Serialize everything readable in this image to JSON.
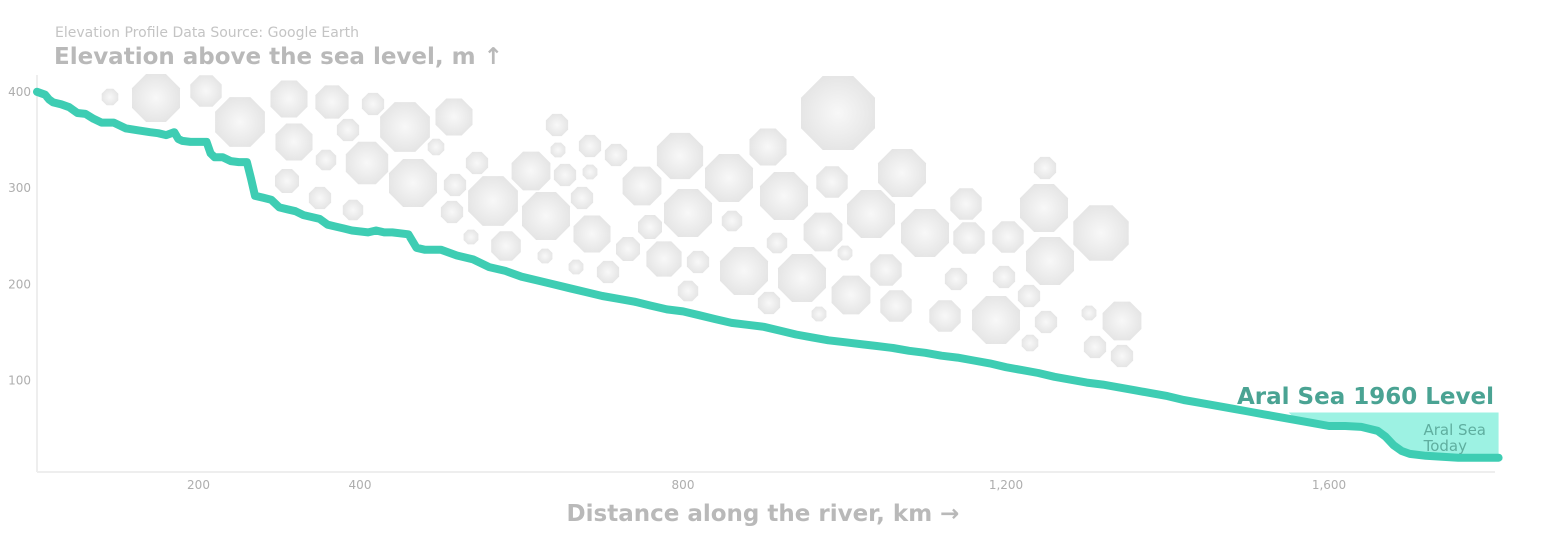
{
  "chart_data": {
    "type": "line",
    "source": "Elevation Profile Data Source: Google Earth",
    "ylabel": "Elevation above the sea level, m ↑",
    "xlabel": "Distance along the river, km →",
    "xlim": [
      0,
      1810
    ],
    "ylim": [
      0,
      420
    ],
    "x_ticks": [
      {
        "value": 200,
        "label": "200"
      },
      {
        "value": 400,
        "label": "400"
      },
      {
        "value": 800,
        "label": "800"
      },
      {
        "value": 1200,
        "label": "1,200"
      },
      {
        "value": 1600,
        "label": "1,600"
      }
    ],
    "y_ticks": [
      {
        "value": 100,
        "label": "100"
      },
      {
        "value": 200,
        "label": "200"
      },
      {
        "value": 300,
        "label": "300"
      },
      {
        "value": 400,
        "label": "400"
      }
    ],
    "grid": false,
    "line_color": "#3ecdb3",
    "series": [
      {
        "x": [
          0,
          10,
          15,
          20,
          30,
          40,
          50,
          60,
          70,
          80,
          95,
          110,
          125,
          140,
          150,
          160,
          170,
          175,
          180,
          190,
          200,
          210,
          215,
          220,
          230,
          240,
          250,
          260,
          265,
          270,
          280,
          290,
          300,
          310,
          320,
          330,
          340,
          350,
          360,
          370,
          380,
          390,
          410,
          420,
          430,
          440,
          460,
          470,
          480,
          500,
          520,
          540,
          560,
          580,
          600,
          620,
          640,
          660,
          680,
          700,
          720,
          740,
          760,
          780,
          800,
          820,
          840,
          860,
          880,
          900,
          920,
          940,
          960,
          980,
          1000,
          1020,
          1040,
          1060,
          1080,
          1100,
          1120,
          1140,
          1160,
          1180,
          1200,
          1220,
          1240,
          1260,
          1280,
          1300,
          1320,
          1340,
          1360,
          1380,
          1400,
          1420,
          1440,
          1460,
          1480,
          1500,
          1520,
          1540,
          1560,
          1580,
          1600,
          1620,
          1640,
          1660,
          1670,
          1680,
          1690,
          1700,
          1720,
          1740,
          1760,
          1780,
          1810
        ],
        "y": [
          400,
          397,
          392,
          389,
          387,
          384,
          378,
          377,
          372,
          368,
          368,
          362,
          360,
          358,
          357,
          355,
          358,
          351,
          349,
          348,
          348,
          348,
          336,
          332,
          332,
          328,
          327,
          327,
          310,
          292,
          290,
          288,
          280,
          278,
          276,
          272,
          270,
          268,
          262,
          260,
          258,
          256,
          254,
          256,
          254,
          254,
          252,
          238,
          236,
          236,
          230,
          226,
          218,
          214,
          208,
          204,
          200,
          196,
          192,
          188,
          185,
          182,
          178,
          174,
          172,
          168,
          164,
          160,
          158,
          156,
          152,
          148,
          145,
          142,
          140,
          138,
          136,
          134,
          131,
          129,
          126,
          124,
          121,
          118,
          114,
          111,
          108,
          104,
          101,
          98,
          96,
          93,
          90,
          87,
          84,
          80,
          77,
          74,
          71,
          68,
          65,
          62,
          59,
          56,
          53,
          53,
          52,
          48,
          42,
          33,
          27,
          24,
          22,
          21,
          20,
          20,
          20
        ]
      }
    ],
    "sea": {
      "title": "Aral Sea 1960 Level",
      "today_line1": "Aral Sea",
      "today_line2": "Today",
      "level_1960": 67,
      "x_start": 1550,
      "fill_color": "#9df2e3"
    }
  }
}
